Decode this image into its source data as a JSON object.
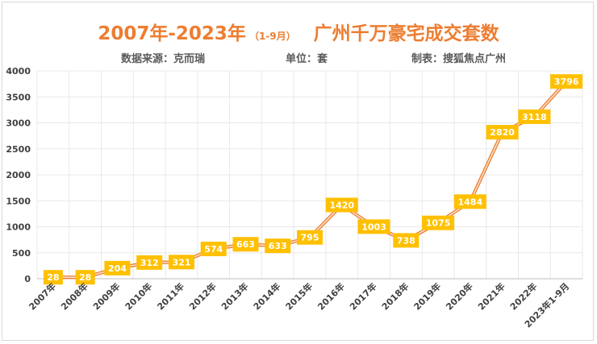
{
  "title": "2007年-2023年",
  "period": "（1-9月）",
  "title_tail": "广州千万豪宅成交套数",
  "source": "数据来源：克而瑞",
  "unit": "单位：套",
  "maker": "制表：搜狐焦点广州",
  "colors": {
    "accent": "#ed7d31",
    "line": "#f4b183",
    "label_bg": "#ffc000",
    "grid": "#e8e8e8"
  },
  "chart_data": {
    "type": "line",
    "categories": [
      "2007年",
      "2008年",
      "2009年",
      "2010年",
      "2011年",
      "2012年",
      "2013年",
      "2014年",
      "2015年",
      "2016年",
      "2017年",
      "2018年",
      "2019年",
      "2020年",
      "2021年",
      "2022年",
      "2023年1-9月"
    ],
    "series": [
      {
        "values": [
          28,
          28,
          204,
          312,
          321,
          574,
          663,
          633,
          795,
          1420,
          1003,
          738,
          1075,
          1484,
          2820,
          3118,
          3796
        ]
      }
    ],
    "yticks": [
      0,
      500,
      1000,
      1500,
      2000,
      2500,
      3000,
      3500,
      4000
    ],
    "ylim": [
      0,
      4000
    ],
    "grid": true,
    "legend": "none"
  }
}
